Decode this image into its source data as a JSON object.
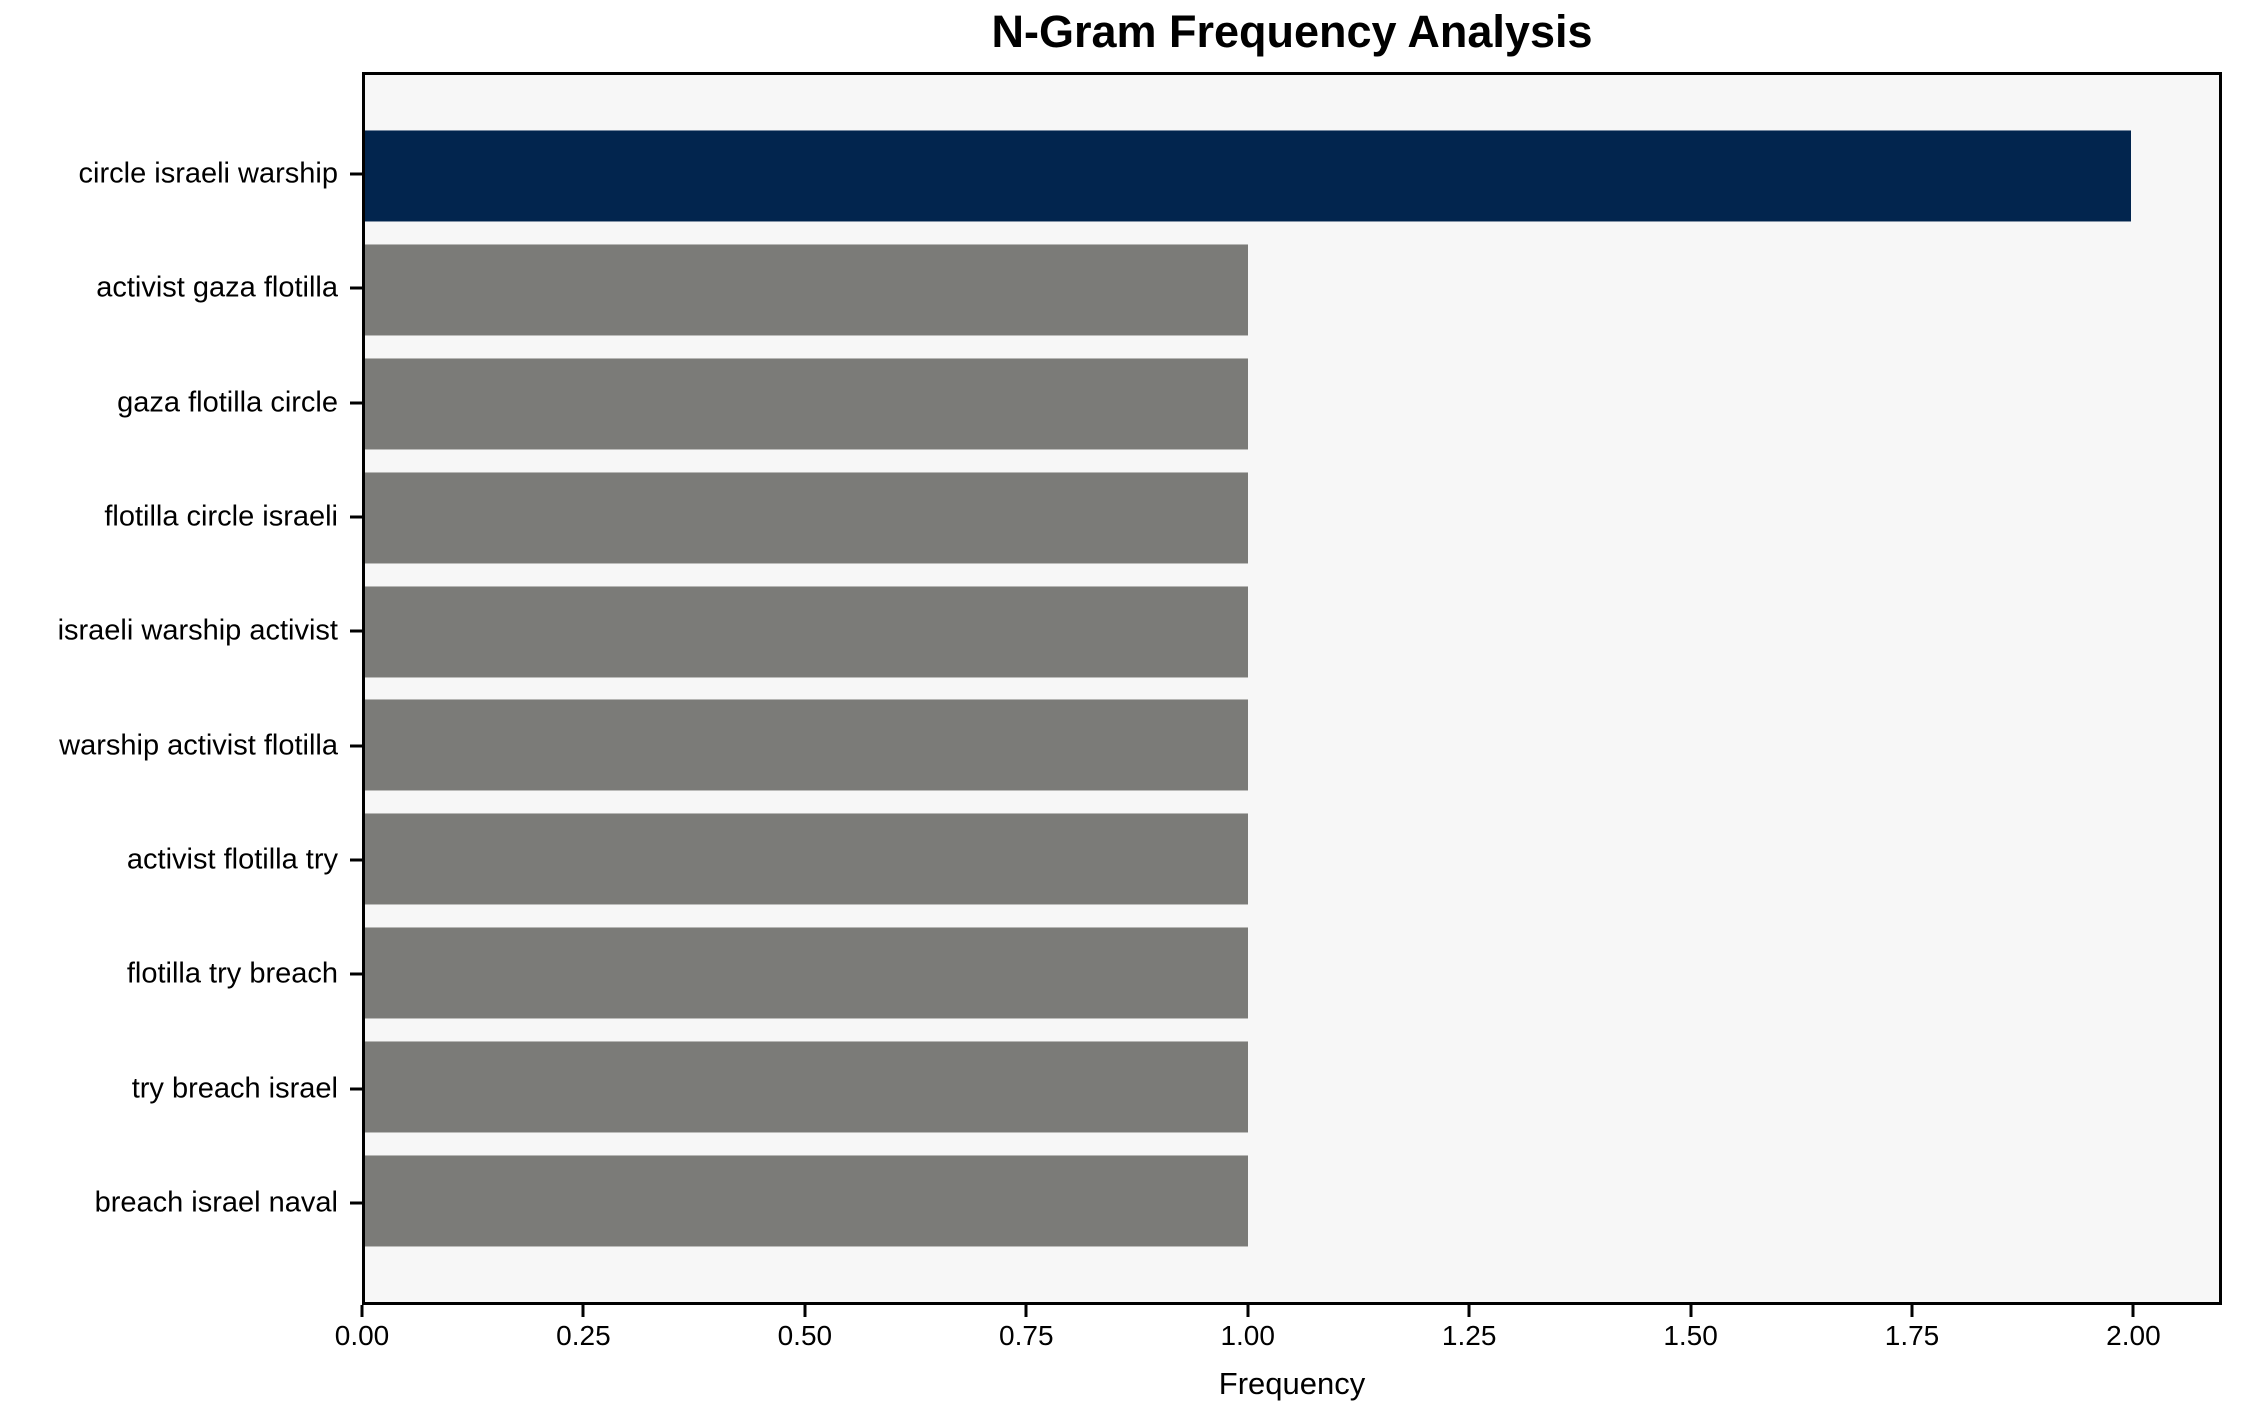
{
  "chart_data": {
    "type": "bar",
    "orientation": "horizontal",
    "title": "N-Gram Frequency Analysis",
    "xlabel": "Frequency",
    "ylabel": "",
    "categories": [
      "circle israeli warship",
      "activist gaza flotilla",
      "gaza flotilla circle",
      "flotilla circle israeli",
      "israeli warship activist",
      "warship activist flotilla",
      "activist flotilla try",
      "flotilla try breach",
      "try breach israel",
      "breach israel naval"
    ],
    "values": [
      2,
      1,
      1,
      1,
      1,
      1,
      1,
      1,
      1,
      1
    ],
    "bar_colors": [
      "#02254e",
      "#7b7b78",
      "#7b7b78",
      "#7b7b78",
      "#7b7b78",
      "#7b7b78",
      "#7b7b78",
      "#7b7b78",
      "#7b7b78",
      "#7b7b78"
    ],
    "highlight_color": "#02254e",
    "default_bar_color": "#7b7b78",
    "xlim": [
      0,
      2.1
    ],
    "xticks": {
      "values": [
        0,
        0.25,
        0.5,
        0.75,
        1.0,
        1.25,
        1.5,
        1.75,
        2.0
      ],
      "labels": [
        "0.00",
        "0.25",
        "0.50",
        "0.75",
        "1.00",
        "1.25",
        "1.50",
        "1.75",
        "2.00"
      ]
    },
    "grid": false,
    "legend": null,
    "plot_background": "#f7f7f7",
    "figure_background": "#ffffff",
    "frame_color": "#000000",
    "text_color": "#000000",
    "bar_height_frac": 0.8,
    "y_margin_units": 0.49
  }
}
